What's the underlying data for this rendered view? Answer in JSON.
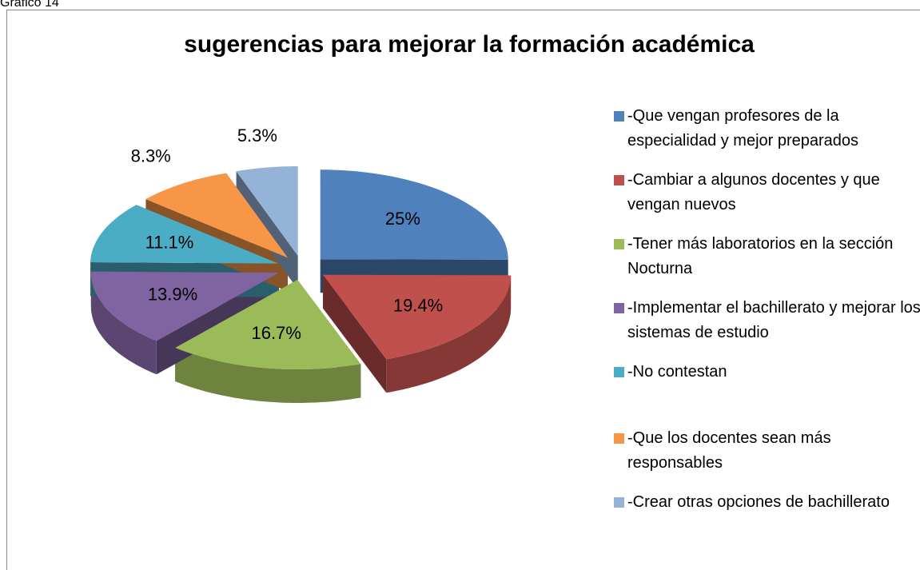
{
  "caption": "Gráfico 14",
  "chart_data": {
    "type": "pie3d",
    "title": "sugerencias para mejorar la formación académica",
    "categories": [
      "-Que vengan profesores de la especialidad y mejor preparados",
      "-Cambiar a algunos docentes y que vengan nuevos",
      "-Tener más laboratorios en la sección Nocturna",
      "-Implementar el bachillerato y mejorar los sistemas de estudio",
      "-No contestan",
      "-Que los docentes sean más responsables",
      "-Crear otras opciones de bachillerato"
    ],
    "values": [
      25,
      19.4,
      16.7,
      13.9,
      11.1,
      8.3,
      5.3
    ],
    "value_labels": [
      "25%",
      "19.4%",
      "16.7%",
      "13.9%",
      "11.1%",
      "8.3%",
      "5.3%"
    ],
    "colors": [
      "#4f81bd",
      "#c0504d",
      "#9bbb59",
      "#8064a2",
      "#4bacc6",
      "#f79646",
      "#95b3d7"
    ],
    "legend": "right"
  }
}
